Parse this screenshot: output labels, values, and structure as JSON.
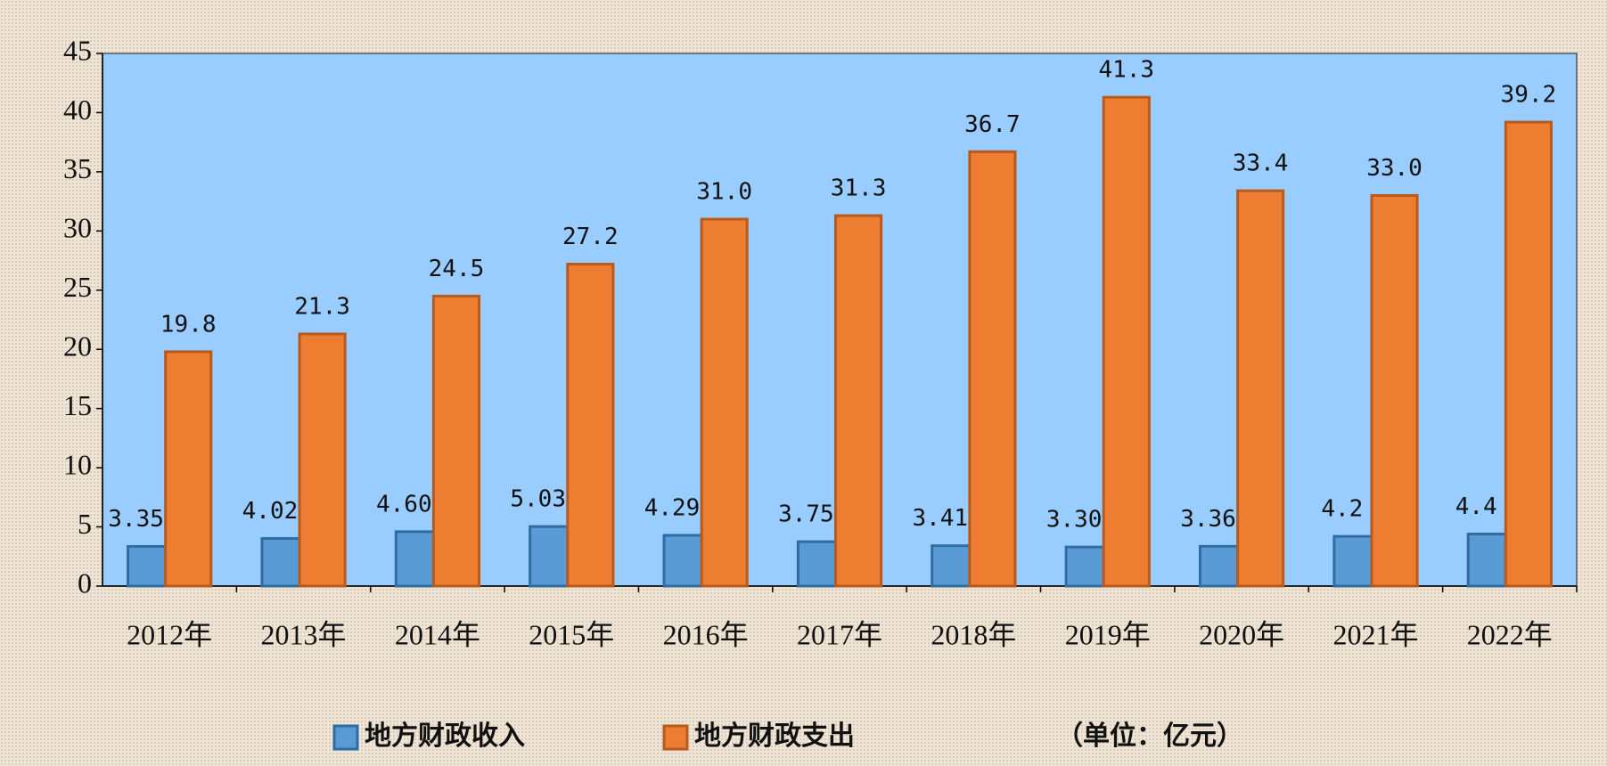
{
  "chart_data": {
    "type": "bar",
    "categories": [
      "2012年",
      "2013年",
      "2014年",
      "2015年",
      "2016年",
      "2017年",
      "2018年",
      "2019年",
      "2020年",
      "2021年",
      "2022年"
    ],
    "series": [
      {
        "name": "地方财政收入",
        "color": "#5b9bd5",
        "values": [
          3.35,
          4.02,
          4.6,
          5.03,
          4.29,
          3.75,
          3.41,
          3.3,
          3.36,
          4.2,
          4.4
        ],
        "value_labels": [
          "3.35",
          "4.02",
          "4.60",
          "5.03",
          "4.29",
          "3.75",
          "3.41",
          "3.30",
          "3.36",
          "4.2",
          "4.4"
        ]
      },
      {
        "name": "地方财政支出",
        "color": "#ed7d31",
        "values": [
          19.8,
          21.3,
          24.5,
          27.2,
          31,
          31.3,
          36.7,
          41.3,
          33.4,
          33,
          39.2
        ],
        "value_labels": [
          "19.8",
          "21.3",
          "24.5",
          "27.2",
          "31.0",
          "31.3",
          "36.7",
          "41.3",
          "33.4",
          "33.0",
          "39.2"
        ]
      }
    ],
    "ylim": [
      0,
      45
    ],
    "yticks": [
      0,
      5,
      10,
      15,
      20,
      25,
      30,
      35,
      40,
      45
    ],
    "grid": false,
    "legend": "bottom",
    "note": "（单位：亿元）"
  }
}
